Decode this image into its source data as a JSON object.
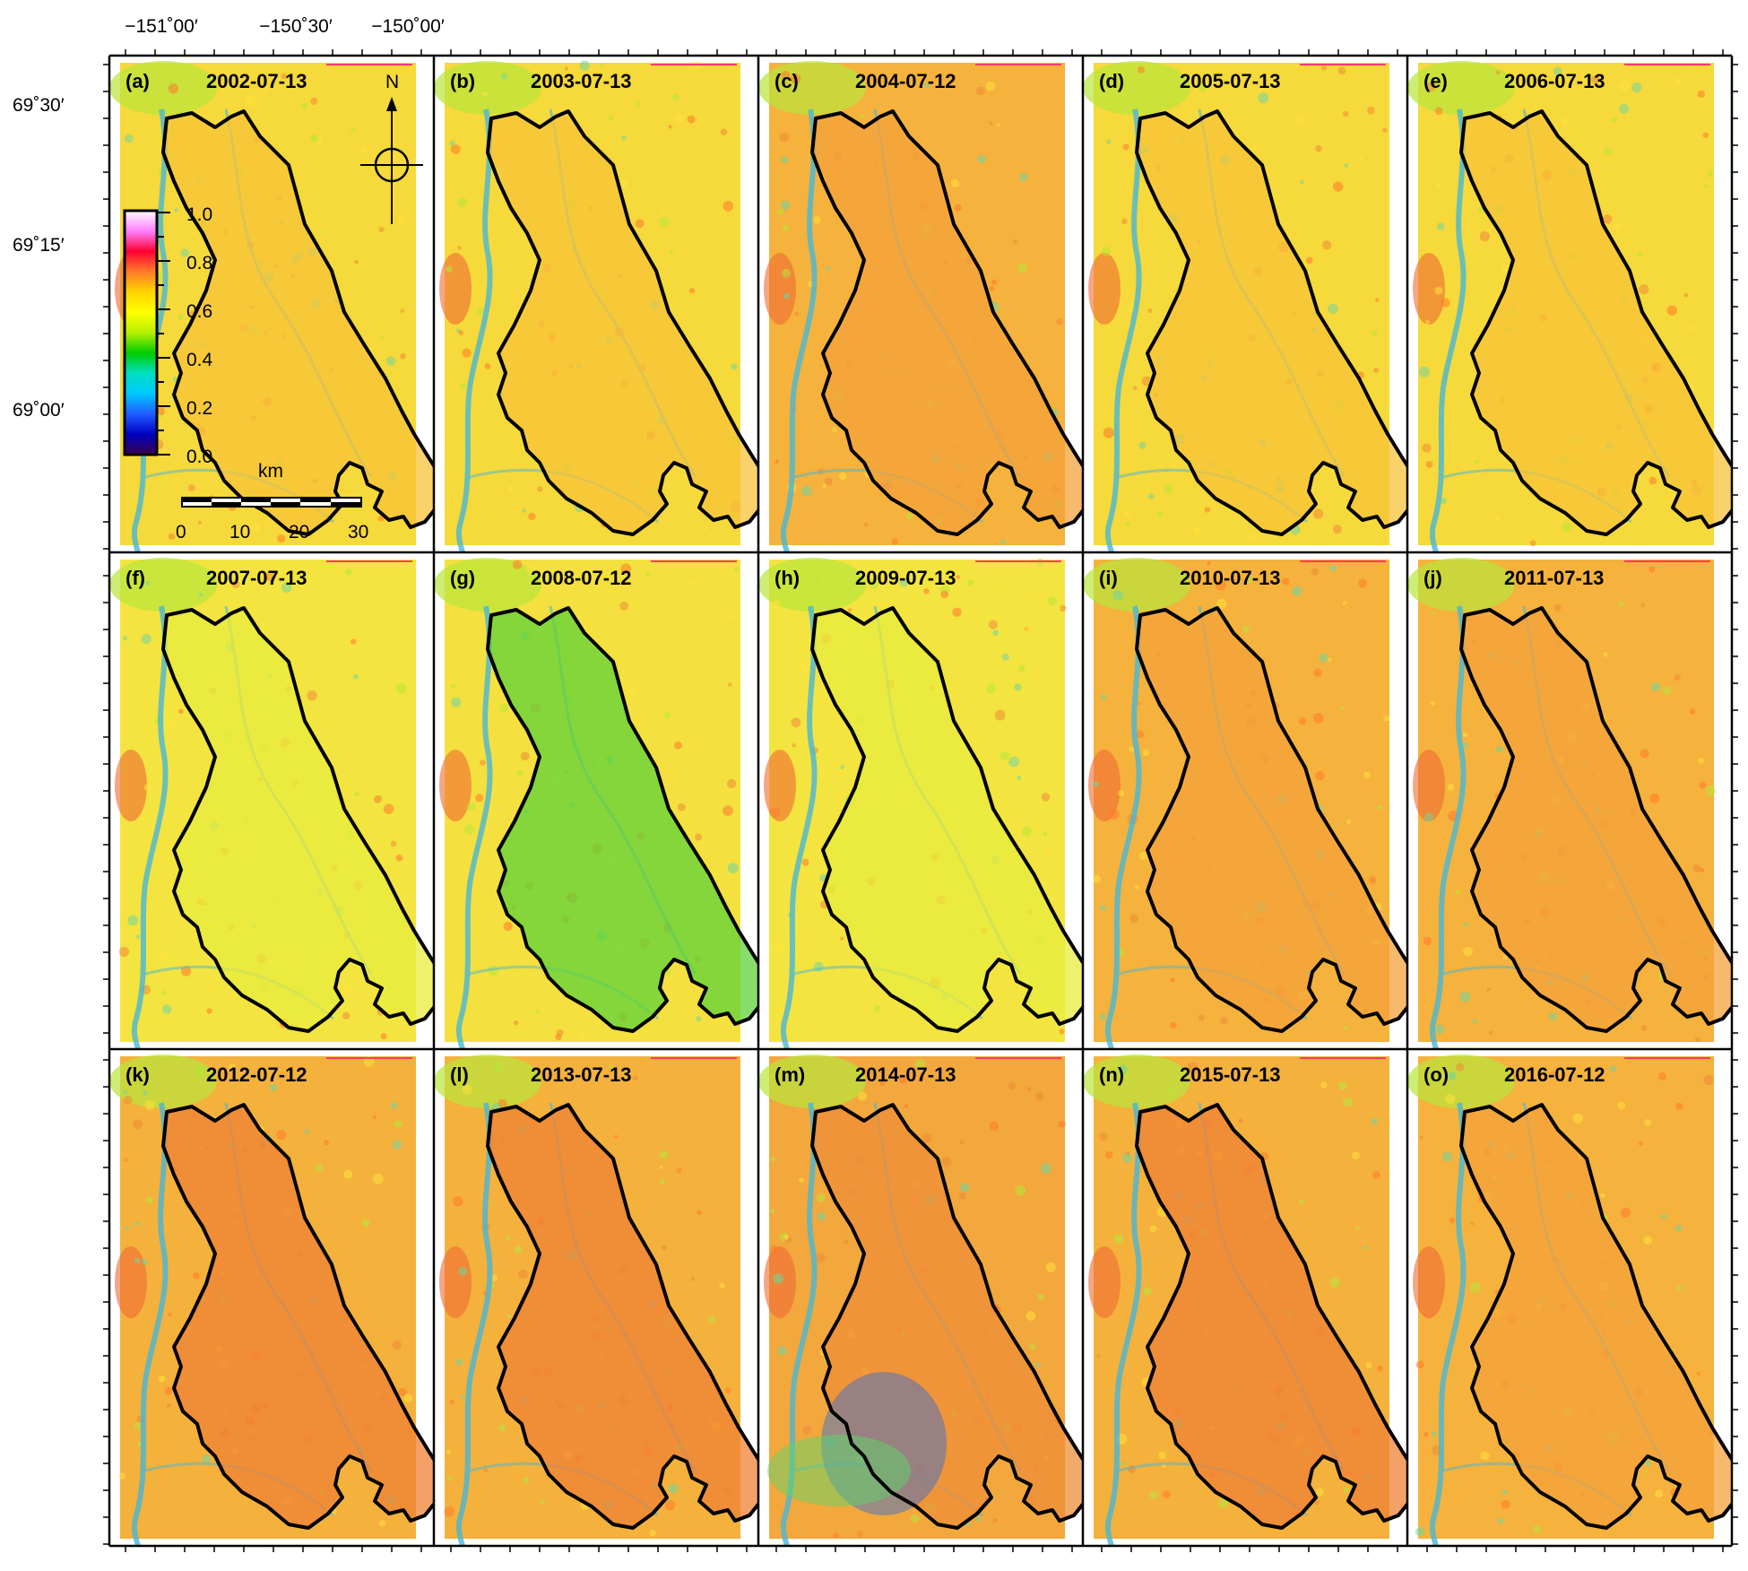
{
  "axes": {
    "longitude_labels": [
      "−151˚00′",
      "−150˚30′",
      "−150˚00′"
    ],
    "latitude_labels": [
      "69˚30′",
      "69˚15′",
      "69˚00′"
    ]
  },
  "panels": [
    {
      "letter": "(a)",
      "date": "2002-07-13",
      "tone": "base"
    },
    {
      "letter": "(b)",
      "date": "2003-07-13",
      "tone": "base"
    },
    {
      "letter": "(c)",
      "date": "2004-07-12",
      "tone": "warm"
    },
    {
      "letter": "(d)",
      "date": "2005-07-13",
      "tone": "base"
    },
    {
      "letter": "(e)",
      "date": "2006-07-13",
      "tone": "base"
    },
    {
      "letter": "(f)",
      "date": "2007-07-13",
      "tone": "cool"
    },
    {
      "letter": "(g)",
      "date": "2008-07-12",
      "tone": "green"
    },
    {
      "letter": "(h)",
      "date": "2009-07-13",
      "tone": "cool"
    },
    {
      "letter": "(i)",
      "date": "2010-07-13",
      "tone": "warm"
    },
    {
      "letter": "(j)",
      "date": "2011-07-13",
      "tone": "warm"
    },
    {
      "letter": "(k)",
      "date": "2012-07-12",
      "tone": "hot"
    },
    {
      "letter": "(l)",
      "date": "2013-07-13",
      "tone": "hot"
    },
    {
      "letter": "(m)",
      "date": "2014-07-13",
      "tone": "burn"
    },
    {
      "letter": "(n)",
      "date": "2015-07-13",
      "tone": "hot"
    },
    {
      "letter": "(o)",
      "date": "2016-07-12",
      "tone": "warm"
    }
  ],
  "legend": {
    "ticks": [
      "1.0",
      "0.8",
      "0.6",
      "0.4",
      "0.2",
      "0.0"
    ],
    "colors": [
      "#ffffff",
      "#ff80ff",
      "#ff0033",
      "#ff7a2a",
      "#ffd400",
      "#ffff00",
      "#b6f000",
      "#00cc00",
      "#00e0c0",
      "#00c8ff",
      "#1f5dff",
      "#0000c0",
      "#3a004f"
    ]
  },
  "north_arrow": {
    "label": "N"
  },
  "scale_bar": {
    "unit": "km",
    "ticks": [
      "0",
      "10",
      "20",
      "30"
    ]
  },
  "tone_colors": {
    "base": {
      "bg": "#f6d93a",
      "in": "#f7c33a"
    },
    "warm": {
      "bg": "#f5b23c",
      "in": "#f4a13b"
    },
    "cool": {
      "bg": "#f3e440",
      "in": "#e8ec3e"
    },
    "green": {
      "bg": "#f4e03e",
      "in": "#5fd33a"
    },
    "hot": {
      "bg": "#f4b13c",
      "in": "#ef8236"
    },
    "burn": {
      "bg": "#f2a83c",
      "in": "#ee8d38"
    }
  },
  "river_color": "#49b6d6",
  "outline_color": "#000000"
}
